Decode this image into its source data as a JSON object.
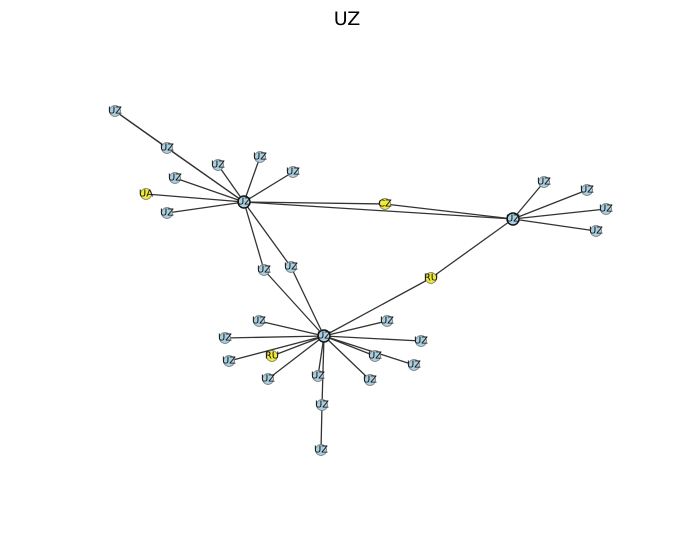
{
  "title": "UZ",
  "colors": {
    "uz_node": "#a9cfe0",
    "other_node": "#f2ea36",
    "edge": "#333333",
    "node_border": "#777777",
    "hub_border": "#111111"
  },
  "nodes": [
    {
      "id": "hubA",
      "label": "UZ",
      "country": "UZ",
      "hub": true
    },
    {
      "id": "hubB",
      "label": "UZ",
      "country": "UZ",
      "hub": true
    },
    {
      "id": "hubC",
      "label": "UZ",
      "country": "UZ",
      "hub": true
    },
    {
      "id": "cz",
      "label": "CZ",
      "country": "CZ"
    },
    {
      "id": "ru1",
      "label": "RU",
      "country": "RU"
    },
    {
      "id": "ua",
      "label": "UA",
      "country": "UA"
    },
    {
      "id": "ru2",
      "label": "RU",
      "country": "RU"
    },
    {
      "id": "a1",
      "label": "UZ",
      "country": "UZ"
    },
    {
      "id": "a2",
      "label": "UZ",
      "country": "UZ"
    },
    {
      "id": "a3",
      "label": "UZ",
      "country": "UZ"
    },
    {
      "id": "a4",
      "label": "UZ",
      "country": "UZ"
    },
    {
      "id": "a5",
      "label": "UZ",
      "country": "UZ"
    },
    {
      "id": "a6",
      "label": "UZ",
      "country": "UZ"
    },
    {
      "id": "a7",
      "label": "UZ",
      "country": "UZ"
    },
    {
      "id": "m1",
      "label": "UZ",
      "country": "UZ"
    },
    {
      "id": "m2",
      "label": "UZ",
      "country": "UZ"
    },
    {
      "id": "b1",
      "label": "UZ",
      "country": "UZ"
    },
    {
      "id": "b2",
      "label": "UZ",
      "country": "UZ"
    },
    {
      "id": "b3",
      "label": "UZ",
      "country": "UZ"
    },
    {
      "id": "b4",
      "label": "UZ",
      "country": "UZ"
    },
    {
      "id": "c1",
      "label": "UZ",
      "country": "UZ"
    },
    {
      "id": "c2",
      "label": "UZ",
      "country": "UZ"
    },
    {
      "id": "c3",
      "label": "UZ",
      "country": "UZ"
    },
    {
      "id": "c4",
      "label": "UZ",
      "country": "UZ"
    },
    {
      "id": "c5",
      "label": "UZ",
      "country": "UZ"
    },
    {
      "id": "c6",
      "label": "UZ",
      "country": "UZ"
    },
    {
      "id": "c7",
      "label": "UZ",
      "country": "UZ"
    },
    {
      "id": "c8",
      "label": "UZ",
      "country": "UZ"
    },
    {
      "id": "c9",
      "label": "UZ",
      "country": "UZ"
    },
    {
      "id": "c10",
      "label": "UZ",
      "country": "UZ"
    },
    {
      "id": "c11",
      "label": "UZ",
      "country": "UZ"
    },
    {
      "id": "c12",
      "label": "UZ",
      "country": "UZ"
    },
    {
      "id": "c13",
      "label": "UZ",
      "country": "UZ"
    }
  ],
  "edges": [
    [
      "hubA",
      "hubB"
    ],
    [
      "hubA",
      "a1"
    ],
    [
      "hubA",
      "a2"
    ],
    [
      "hubA",
      "a3"
    ],
    [
      "hubA",
      "a4"
    ],
    [
      "hubA",
      "a5"
    ],
    [
      "hubA",
      "a6"
    ],
    [
      "hubA",
      "ua"
    ],
    [
      "hubA",
      "a7"
    ],
    [
      "hubA",
      "m1"
    ],
    [
      "hubA",
      "m2"
    ],
    [
      "hubA",
      "cz"
    ],
    [
      "a1",
      "a7"
    ],
    [
      "cz",
      "hubB"
    ],
    [
      "hubB",
      "b1"
    ],
    [
      "hubB",
      "b2"
    ],
    [
      "hubB",
      "b3"
    ],
    [
      "hubB",
      "b4"
    ],
    [
      "hubB",
      "ru1"
    ],
    [
      "ru1",
      "hubC"
    ],
    [
      "m1",
      "hubC"
    ],
    [
      "m2",
      "hubC"
    ],
    [
      "hubC",
      "c1"
    ],
    [
      "hubC",
      "c2"
    ],
    [
      "hubC",
      "c3"
    ],
    [
      "hubC",
      "ru2"
    ],
    [
      "hubC",
      "c4"
    ],
    [
      "hubC",
      "c5"
    ],
    [
      "hubC",
      "c6"
    ],
    [
      "hubC",
      "c7"
    ],
    [
      "hubC",
      "c8"
    ],
    [
      "hubC",
      "c9"
    ],
    [
      "hubC",
      "c10"
    ],
    [
      "hubC",
      "c11"
    ],
    [
      "c11",
      "c12"
    ],
    [
      "hubC",
      "c13"
    ]
  ]
}
